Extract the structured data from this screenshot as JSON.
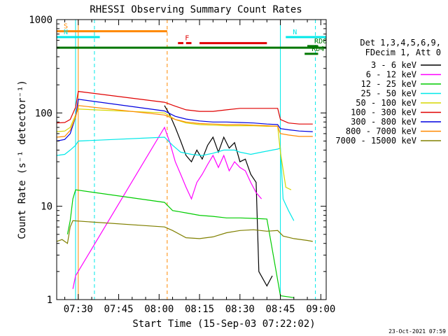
{
  "chart_data": {
    "type": "line",
    "title": "RHESSI Observing Summary Count Rates",
    "xlabel": "Start Time (15-Sep-03 07:22:02)",
    "ylabel": "Count Rate (s⁻¹ detector⁻¹)",
    "y_scale": "log",
    "ylim": [
      1,
      1000
    ],
    "xlim": [
      "07:22",
      "09:02"
    ],
    "x_ticks": [
      "07:30",
      "07:45",
      "08:00",
      "08:15",
      "08:30",
      "08:45",
      "09:00"
    ],
    "y_ticks": [
      "1",
      "10",
      "100",
      "1000"
    ],
    "grid": false,
    "legend_placement": "right",
    "detector_info": [
      "Det 1,3,4,5,6,9,",
      "FDecim 1, Att 0"
    ],
    "timestamp": "23-Oct-2021 07:59",
    "series": [
      {
        "name": "3 - 6 keV",
        "color": "#000000",
        "points": [
          [
            "08:02",
            120
          ],
          [
            "08:04",
            95
          ],
          [
            "08:06",
            70
          ],
          [
            "08:08",
            50
          ],
          [
            "08:10",
            35
          ],
          [
            "08:12",
            30
          ],
          [
            "08:14",
            40
          ],
          [
            "08:16",
            32
          ],
          [
            "08:18",
            45
          ],
          [
            "08:20",
            55
          ],
          [
            "08:22",
            38
          ],
          [
            "08:24",
            55
          ],
          [
            "08:26",
            42
          ],
          [
            "08:28",
            48
          ],
          [
            "08:30",
            30
          ],
          [
            "08:32",
            32
          ],
          [
            "08:34",
            22
          ],
          [
            "08:36",
            18
          ],
          [
            "08:37",
            2
          ],
          [
            "08:40",
            1.4
          ],
          [
            "08:42",
            1.8
          ]
        ]
      },
      {
        "name": "6 - 12 keV",
        "color": "#ff00ff",
        "points": [
          [
            "07:28",
            1.3
          ],
          [
            "07:29",
            1.8
          ],
          [
            "08:02",
            70
          ],
          [
            "08:04",
            48
          ],
          [
            "08:06",
            30
          ],
          [
            "08:08",
            22
          ],
          [
            "08:10",
            16
          ],
          [
            "08:12",
            12
          ],
          [
            "08:14",
            18
          ],
          [
            "08:16",
            22
          ],
          [
            "08:18",
            28
          ],
          [
            "08:20",
            35
          ],
          [
            "08:22",
            26
          ],
          [
            "08:24",
            35
          ],
          [
            "08:26",
            24
          ],
          [
            "08:28",
            30
          ],
          [
            "08:30",
            26
          ],
          [
            "08:32",
            24
          ],
          [
            "08:34",
            18
          ],
          [
            "08:36",
            14
          ],
          [
            "08:38",
            12
          ]
        ]
      },
      {
        "name": "12 - 25 keV",
        "color": "#00cc00",
        "points": [
          [
            "07:26",
            5
          ],
          [
            "07:27",
            7
          ],
          [
            "07:28",
            12
          ],
          [
            "07:29",
            15
          ],
          [
            "08:02",
            11
          ],
          [
            "08:05",
            9
          ],
          [
            "08:10",
            8.5
          ],
          [
            "08:15",
            8
          ],
          [
            "08:20",
            7.8
          ],
          [
            "08:25",
            7.5
          ],
          [
            "08:30",
            7.5
          ],
          [
            "08:36",
            7.4
          ],
          [
            "08:40",
            7.3
          ],
          [
            "08:45",
            1.1
          ],
          [
            "08:50",
            1.05
          ]
        ]
      },
      {
        "name": "25 - 50 keV",
        "color": "#00e8e8",
        "points": [
          [
            "07:22",
            35
          ],
          [
            "07:25",
            36
          ],
          [
            "07:27",
            40
          ],
          [
            "07:29",
            45
          ],
          [
            "07:30",
            50
          ],
          [
            "08:02",
            55
          ],
          [
            "08:05",
            45
          ],
          [
            "08:08",
            38
          ],
          [
            "08:12",
            36
          ],
          [
            "08:16",
            35
          ],
          [
            "08:20",
            37
          ],
          [
            "08:24",
            40
          ],
          [
            "08:28",
            40
          ],
          [
            "08:30",
            38
          ],
          [
            "08:34",
            36
          ],
          [
            "08:38",
            38
          ],
          [
            "08:42",
            40
          ],
          [
            "08:44",
            41
          ],
          [
            "08:45",
            42
          ],
          [
            "08:46",
            12
          ],
          [
            "08:48",
            9
          ],
          [
            "08:50",
            7
          ]
        ]
      },
      {
        "name": "50 - 100 keV",
        "color": "#d7d700",
        "points": [
          [
            "07:22",
            63
          ],
          [
            "07:25",
            64
          ],
          [
            "07:27",
            70
          ],
          [
            "07:29",
            95
          ],
          [
            "07:30",
            110
          ],
          [
            "08:02",
            100
          ],
          [
            "08:06",
            85
          ],
          [
            "08:10",
            78
          ],
          [
            "08:15",
            75
          ],
          [
            "08:20",
            74
          ],
          [
            "08:25",
            73
          ],
          [
            "08:30",
            73
          ],
          [
            "08:35",
            73
          ],
          [
            "08:40",
            72
          ],
          [
            "08:44",
            72
          ],
          [
            "08:45",
            38
          ],
          [
            "08:47",
            16
          ],
          [
            "08:49",
            15
          ]
        ]
      },
      {
        "name": "100 - 300 keV",
        "color": "#e00000",
        "points": [
          [
            "07:22",
            78
          ],
          [
            "07:25",
            79
          ],
          [
            "07:27",
            85
          ],
          [
            "07:29",
            115
          ],
          [
            "07:30",
            170
          ],
          [
            "08:02",
            130
          ],
          [
            "08:06",
            118
          ],
          [
            "08:10",
            108
          ],
          [
            "08:15",
            104
          ],
          [
            "08:20",
            104
          ],
          [
            "08:25",
            108
          ],
          [
            "08:30",
            112
          ],
          [
            "08:35",
            112
          ],
          [
            "08:40",
            112
          ],
          [
            "08:44",
            112
          ],
          [
            "08:45",
            85
          ],
          [
            "08:48",
            78
          ],
          [
            "08:52",
            76
          ],
          [
            "08:57",
            76
          ]
        ]
      },
      {
        "name": "300 - 800 keV",
        "color": "#0000e0",
        "points": [
          [
            "07:22",
            50
          ],
          [
            "07:25",
            52
          ],
          [
            "07:27",
            60
          ],
          [
            "07:29",
            90
          ],
          [
            "07:30",
            140
          ],
          [
            "08:02",
            105
          ],
          [
            "08:06",
            92
          ],
          [
            "08:10",
            86
          ],
          [
            "08:15",
            82
          ],
          [
            "08:20",
            80
          ],
          [
            "08:25",
            80
          ],
          [
            "08:30",
            79
          ],
          [
            "08:35",
            78
          ],
          [
            "08:40",
            76
          ],
          [
            "08:44",
            75
          ],
          [
            "08:45",
            68
          ],
          [
            "08:48",
            66
          ],
          [
            "08:52",
            64
          ],
          [
            "08:57",
            63
          ]
        ]
      },
      {
        "name": "800 - 7000 keV",
        "color": "#ff8800",
        "points": [
          [
            "07:22",
            55
          ],
          [
            "07:25",
            56
          ],
          [
            "07:27",
            65
          ],
          [
            "07:29",
            90
          ],
          [
            "07:30",
            120
          ],
          [
            "08:02",
            95
          ],
          [
            "08:06",
            85
          ],
          [
            "08:10",
            80
          ],
          [
            "08:15",
            77
          ],
          [
            "08:20",
            76
          ],
          [
            "08:25",
            75
          ],
          [
            "08:30",
            75
          ],
          [
            "08:35",
            74
          ],
          [
            "08:40",
            73
          ],
          [
            "08:44",
            72
          ],
          [
            "08:45",
            60
          ],
          [
            "08:48",
            58
          ],
          [
            "08:52",
            56
          ],
          [
            "08:57",
            56
          ]
        ]
      },
      {
        "name": "7000 - 15000 keV",
        "color": "#808000",
        "points": [
          [
            "07:22",
            4.2
          ],
          [
            "07:24",
            4.4
          ],
          [
            "07:26",
            4.0
          ],
          [
            "07:27",
            6
          ],
          [
            "07:28",
            7
          ],
          [
            "08:02",
            6
          ],
          [
            "08:05",
            5.5
          ],
          [
            "08:10",
            4.6
          ],
          [
            "08:15",
            4.5
          ],
          [
            "08:20",
            4.7
          ],
          [
            "08:25",
            5.2
          ],
          [
            "08:30",
            5.5
          ],
          [
            "08:35",
            5.6
          ],
          [
            "08:40",
            5.4
          ],
          [
            "08:44",
            5.5
          ],
          [
            "08:46",
            4.8
          ],
          [
            "08:50",
            4.5
          ],
          [
            "08:55",
            4.3
          ],
          [
            "08:57",
            4.2
          ]
        ]
      }
    ],
    "markers": [
      {
        "label": "S",
        "color": "#ff8800",
        "y": 750,
        "x_start": "07:22",
        "x_end": "08:03"
      },
      {
        "label": "N",
        "color": "#00e8e8",
        "y": 650,
        "x_start": "07:22",
        "x_end": "07:38"
      },
      {
        "label": "N",
        "color": "#00e8e8",
        "y": 650,
        "x_start": "08:47",
        "x_end": "09:02"
      },
      {
        "label": "F",
        "color": "#e00000",
        "y": 560,
        "x_start": "08:07",
        "x_end": "08:09"
      },
      {
        "label": "",
        "color": "#e00000",
        "y": 560,
        "x_start": "08:10",
        "x_end": "08:12"
      },
      {
        "label": "",
        "color": "#e00000",
        "y": 560,
        "x_start": "08:15",
        "x_end": "08:40"
      },
      {
        "label": "",
        "color": "#007700",
        "y": 500,
        "x_start": "07:22",
        "x_end": "09:02"
      },
      {
        "label": "RD4",
        "color": "#007700",
        "y": 430,
        "x_start": "08:54",
        "x_end": "08:59"
      },
      {
        "label": "RD0",
        "color": "#007700",
        "y": 520,
        "x_start": "08:55",
        "x_end": "08:59"
      }
    ],
    "vertical_lines": [
      {
        "x": "07:29",
        "color": "#00e8e8",
        "style": "solid"
      },
      {
        "x": "07:30",
        "color": "#ff8800",
        "style": "solid"
      },
      {
        "x": "07:36",
        "color": "#00e8e8",
        "style": "dashed"
      },
      {
        "x": "08:03",
        "color": "#ff8800",
        "style": "dashed"
      },
      {
        "x": "08:45",
        "color": "#00e8e8",
        "style": "solid"
      },
      {
        "x": "08:58",
        "color": "#00e8e8",
        "style": "dashed"
      }
    ]
  }
}
